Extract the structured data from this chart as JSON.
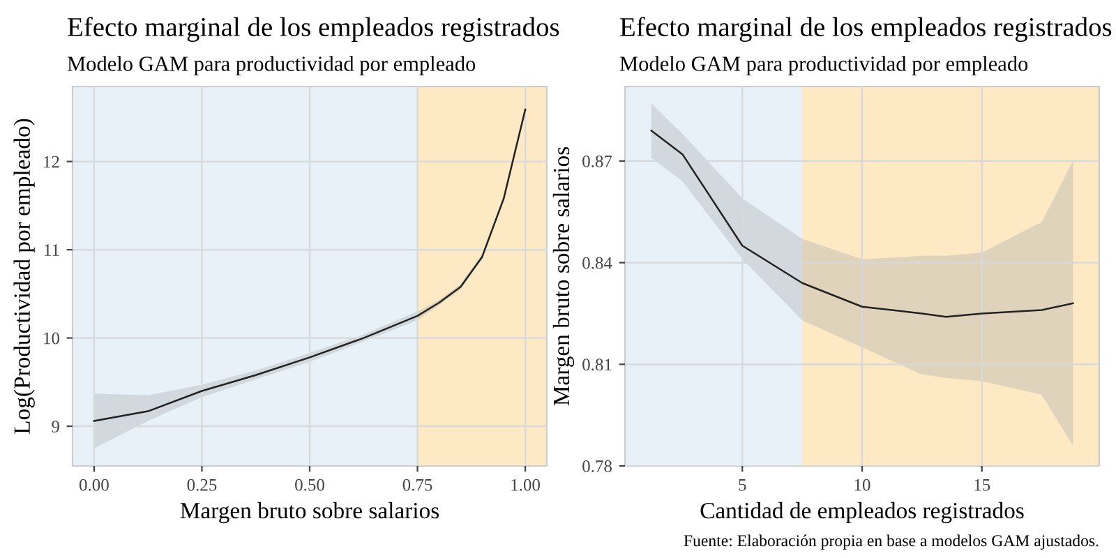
{
  "chart_data": [
    {
      "type": "line",
      "title": "Efecto marginal de los empleados registrados",
      "subtitle": "Modelo GAM para productividad por empleado",
      "xlabel": "Margen bruto sobre salarios",
      "ylabel": "Log(Productividad por empleado)",
      "series": [
        {
          "color": "#222222",
          "x": [
            0,
            0.125,
            0.25,
            0.375,
            0.5,
            0.625,
            0.75,
            0.8,
            0.85,
            0.9,
            0.95,
            1.0
          ],
          "values": [
            9.06,
            9.17,
            9.4,
            9.58,
            9.78,
            10.0,
            10.25,
            10.4,
            10.58,
            10.92,
            11.58,
            12.59
          ],
          "lower": [
            8.75,
            9.06,
            9.33,
            9.53,
            9.73,
            9.96,
            10.2,
            10.37,
            10.55,
            10.89,
            11.55,
            12.55
          ],
          "upper": [
            9.37,
            9.35,
            9.47,
            9.63,
            9.83,
            10.04,
            10.3,
            10.43,
            10.61,
            10.95,
            11.61,
            12.63
          ]
        }
      ],
      "xlim": [
        -0.05,
        1.05
      ],
      "ylim": [
        8.55,
        12.85
      ],
      "xticks": [
        {
          "value": 0,
          "label": "0.00"
        },
        {
          "value": 0.25,
          "label": "0.25"
        },
        {
          "value": 0.5,
          "label": "0.50"
        },
        {
          "value": 0.75,
          "label": "0.75"
        },
        {
          "value": 1,
          "label": "1.00"
        }
      ],
      "yticks": [
        9,
        10,
        11,
        12
      ],
      "grid": true,
      "bands": [
        {
          "axis": "x",
          "from": -0.05,
          "to": 0.75,
          "color": "#e8f1f7"
        },
        {
          "axis": "x",
          "from": 0.75,
          "to": 1.05,
          "color": "#fde9c4"
        }
      ]
    },
    {
      "type": "line",
      "title": "Efecto marginal de los empleados registrados",
      "subtitle": "Modelo GAM para productividad por empleado",
      "xlabel": "Cantidad de empleados registrados",
      "ylabel": "Margen bruto sobre salarios",
      "series": [
        {
          "color": "#222222",
          "x": [
            1.2,
            2.5,
            5,
            7.5,
            10,
            12.5,
            13.5,
            15,
            17.5,
            18.8
          ],
          "values": [
            0.879,
            0.872,
            0.845,
            0.834,
            0.827,
            0.825,
            0.824,
            0.825,
            0.826,
            0.828
          ],
          "lower": [
            0.871,
            0.864,
            0.841,
            0.823,
            0.815,
            0.807,
            0.806,
            0.805,
            0.801,
            0.786
          ],
          "upper": [
            0.887,
            0.878,
            0.859,
            0.847,
            0.841,
            0.842,
            0.842,
            0.843,
            0.852,
            0.87
          ]
        }
      ],
      "xlim": [
        0.1,
        19.9
      ],
      "ylim": [
        0.78,
        0.892
      ],
      "xticks": [
        5,
        10,
        15
      ],
      "yticks": [
        0.78,
        0.81,
        0.84,
        0.87
      ],
      "grid": true,
      "bands": [
        {
          "axis": "x",
          "from": 0.1,
          "to": 7.5,
          "color": "#e8f1f7"
        },
        {
          "axis": "x",
          "from": 7.5,
          "to": 19.9,
          "color": "#fde9c4"
        }
      ],
      "annotations": [
        "Fuente: Elaboración propia en base a modelos GAM ajustados."
      ]
    }
  ]
}
